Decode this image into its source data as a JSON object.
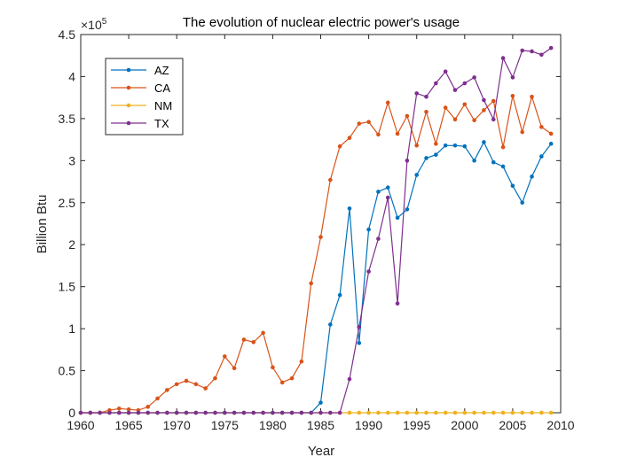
{
  "chart_data": {
    "type": "line",
    "title": "The evolution of nuclear electric power's usage",
    "xlabel": "Year",
    "ylabel": "Billion Btu",
    "y_exponent_label": "×10",
    "y_exponent_power": "5",
    "y_scale": 100000,
    "xlim": [
      1960,
      2010
    ],
    "ylim": [
      0,
      4.5
    ],
    "xticks": [
      1960,
      1965,
      1970,
      1975,
      1980,
      1985,
      1990,
      1995,
      2000,
      2005,
      2010
    ],
    "yticks": [
      0,
      0.5,
      1,
      1.5,
      2,
      2.5,
      3,
      3.5,
      4,
      4.5
    ],
    "ytick_labels": [
      "0",
      "0.5",
      "1",
      "1.5",
      "2",
      "2.5",
      "3",
      "3.5",
      "4",
      "4.5"
    ],
    "grid": false,
    "legend_position": "top-left",
    "x": [
      1960,
      1961,
      1962,
      1963,
      1964,
      1965,
      1966,
      1967,
      1968,
      1969,
      1970,
      1971,
      1972,
      1973,
      1974,
      1975,
      1976,
      1977,
      1978,
      1979,
      1980,
      1981,
      1982,
      1983,
      1984,
      1985,
      1986,
      1987,
      1988,
      1989,
      1990,
      1991,
      1992,
      1993,
      1994,
      1995,
      1996,
      1997,
      1998,
      1999,
      2000,
      2001,
      2002,
      2003,
      2004,
      2005,
      2006,
      2007,
      2008,
      2009
    ],
    "series": [
      {
        "name": "AZ",
        "color": "#0072BD",
        "values": [
          0,
          0,
          0,
          0,
          0,
          0,
          0,
          0,
          0,
          0,
          0,
          0,
          0,
          0,
          0,
          0,
          0,
          0,
          0,
          0,
          0,
          0,
          0,
          0,
          0,
          0.12,
          1.05,
          1.4,
          2.43,
          0.83,
          2.18,
          2.63,
          2.68,
          2.32,
          2.42,
          2.83,
          3.03,
          3.07,
          3.18,
          3.18,
          3.17,
          3.0,
          3.22,
          2.98,
          2.93,
          2.7,
          2.5,
          2.81,
          3.05,
          3.2
        ]
      },
      {
        "name": "CA",
        "color": "#D95319",
        "values": [
          0,
          0,
          0,
          0.03,
          0.05,
          0.04,
          0.03,
          0.07,
          0.17,
          0.27,
          0.34,
          0.38,
          0.34,
          0.29,
          0.41,
          0.67,
          0.53,
          0.87,
          0.84,
          0.95,
          0.54,
          0.36,
          0.41,
          0.61,
          1.54,
          2.09,
          2.77,
          3.17,
          3.27,
          3.44,
          3.46,
          3.31,
          3.69,
          3.32,
          3.53,
          3.18,
          3.58,
          3.2,
          3.63,
          3.49,
          3.67,
          3.48,
          3.6,
          3.71,
          3.16,
          3.77,
          3.34,
          3.76,
          3.4,
          3.32
        ]
      },
      {
        "name": "NM",
        "color": "#EDB120",
        "values": [
          0,
          0,
          0,
          0,
          0,
          0,
          0,
          0,
          0,
          0,
          0,
          0,
          0,
          0,
          0,
          0,
          0,
          0,
          0,
          0,
          0,
          0,
          0,
          0,
          0,
          0,
          0,
          0,
          0,
          0,
          0,
          0,
          0,
          0,
          0,
          0,
          0,
          0,
          0,
          0,
          0,
          0,
          0,
          0,
          0,
          0,
          0,
          0,
          0,
          0
        ]
      },
      {
        "name": "TX",
        "color": "#7E2F8E",
        "values": [
          0,
          0,
          0,
          0,
          0,
          0,
          0,
          0,
          0,
          0,
          0,
          0,
          0,
          0,
          0,
          0,
          0,
          0,
          0,
          0,
          0,
          0,
          0,
          0,
          0,
          0,
          0,
          0,
          0.4,
          1.02,
          1.68,
          2.07,
          2.56,
          1.3,
          3.0,
          3.8,
          3.76,
          3.92,
          4.06,
          3.84,
          3.92,
          3.99,
          3.72,
          3.49,
          4.22,
          3.99,
          4.31,
          4.3,
          4.26,
          4.34
        ]
      }
    ]
  }
}
